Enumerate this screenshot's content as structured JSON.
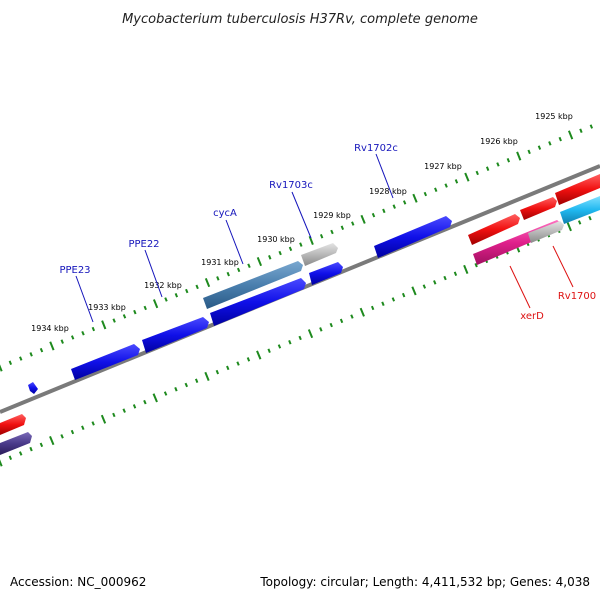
{
  "title": "Mycobacterium tuberculosis H37Rv, complete genome",
  "footer": {
    "accession": "Accession: NC_000962",
    "summary": "Topology: circular; Length: 4,411,532 bp; Genes: 4,038"
  },
  "colors": {
    "backbone": "#7a7a7a",
    "tick": "#1e8a1e",
    "outer_gene": "#1010e8",
    "outer_label": "#1515bb",
    "highlight_gene": "#4a7fae",
    "pseudo_gene": "#b8b8b8",
    "inner_red": "#f01010",
    "inner_magenta": "#e0208c",
    "inner_cyan": "#20b8f0",
    "inner_purple": "#4a3a8a",
    "inner_label": "#dd1111"
  },
  "scale_labels": [
    "1925 kbp",
    "1926 kbp",
    "1927 kbp",
    "1928 kbp",
    "1929 kbp",
    "1930 kbp",
    "1931 kbp",
    "1932 kbp",
    "1933 kbp",
    "1934 kbp"
  ],
  "genes": {
    "outer": [
      "PPE23",
      "PPE22",
      "cycA",
      "Rv1703c",
      "Rv1702c"
    ],
    "inner": [
      "xerD",
      "Rv1700"
    ]
  }
}
